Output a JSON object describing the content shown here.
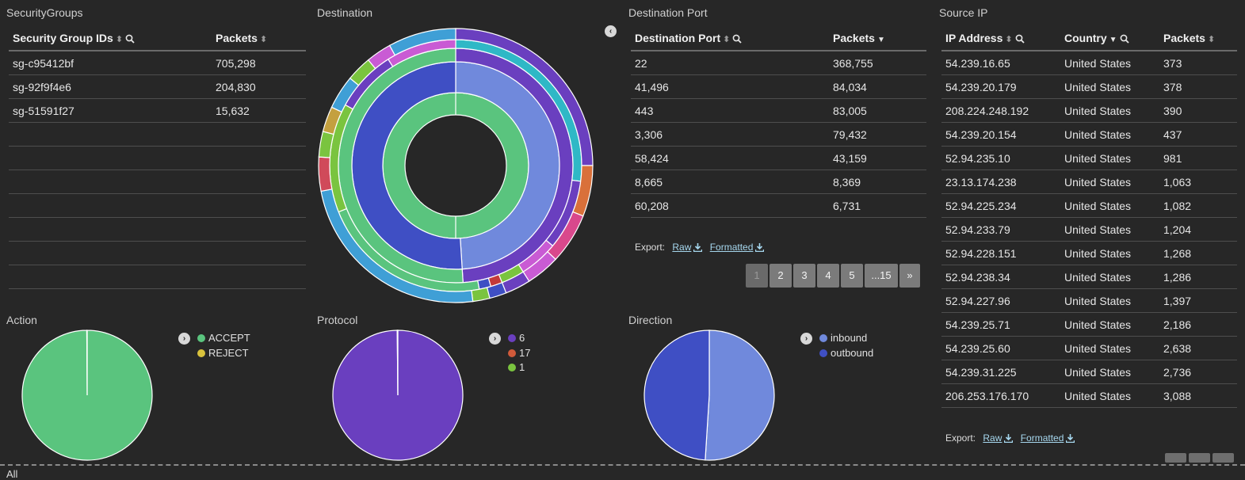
{
  "security_groups": {
    "title": "SecurityGroups",
    "headers": [
      "Security Group IDs",
      "Packets"
    ],
    "rows": [
      [
        "sg-c95412bf",
        "705,298"
      ],
      [
        "sg-92f9f4e6",
        "204,830"
      ],
      [
        "sg-51591f27",
        "15,632"
      ],
      [
        "",
        ""
      ],
      [
        "",
        ""
      ],
      [
        "",
        ""
      ],
      [
        "",
        ""
      ],
      [
        "",
        ""
      ],
      [
        "",
        ""
      ],
      [
        "",
        ""
      ]
    ]
  },
  "destination": {
    "title": "Destination",
    "icon": "chevron-left-icon"
  },
  "destination_port": {
    "title": "Destination Port",
    "headers": [
      "Destination Port",
      "Packets"
    ],
    "rows": [
      [
        "22",
        "368,755"
      ],
      [
        "41,496",
        "84,034"
      ],
      [
        "443",
        "83,005"
      ],
      [
        "3,306",
        "79,432"
      ],
      [
        "58,424",
        "43,159"
      ],
      [
        "8,665",
        "8,369"
      ],
      [
        "60,208",
        "6,731"
      ]
    ],
    "export": {
      "label": "Export:",
      "raw": "Raw",
      "formatted": "Formatted"
    },
    "pager": [
      "1",
      "2",
      "3",
      "4",
      "5",
      "...15",
      "»"
    ]
  },
  "source_ip": {
    "title": "Source IP",
    "headers": [
      "IP Address",
      "Country",
      "Packets"
    ],
    "rows": [
      [
        "54.239.16.65",
        "United States",
        "373"
      ],
      [
        "54.239.20.179",
        "United States",
        "378"
      ],
      [
        "208.224.248.192",
        "United States",
        "390"
      ],
      [
        "54.239.20.154",
        "United States",
        "437"
      ],
      [
        "52.94.235.10",
        "United States",
        "981"
      ],
      [
        "23.13.174.238",
        "United States",
        "1,063"
      ],
      [
        "52.94.225.234",
        "United States",
        "1,082"
      ],
      [
        "52.94.233.79",
        "United States",
        "1,204"
      ],
      [
        "52.94.228.151",
        "United States",
        "1,268"
      ],
      [
        "52.94.238.34",
        "United States",
        "1,286"
      ],
      [
        "52.94.227.96",
        "United States",
        "1,397"
      ],
      [
        "54.239.25.71",
        "United States",
        "2,186"
      ],
      [
        "54.239.25.60",
        "United States",
        "2,638"
      ],
      [
        "54.239.31.225",
        "United States",
        "2,736"
      ],
      [
        "206.253.176.170",
        "United States",
        "3,088"
      ]
    ],
    "export": {
      "label": "Export:",
      "raw": "Raw",
      "formatted": "Formatted"
    }
  },
  "action": {
    "title": "Action",
    "legend": [
      {
        "label": "ACCEPT",
        "color": "#5ac47e"
      },
      {
        "label": "REJECT",
        "color": "#d9c23c"
      }
    ]
  },
  "protocol": {
    "title": "Protocol",
    "legend": [
      {
        "label": "6",
        "color": "#6a3fbf"
      },
      {
        "label": "17",
        "color": "#d15a3a"
      },
      {
        "label": "1",
        "color": "#7ac43f"
      }
    ]
  },
  "direction": {
    "title": "Direction",
    "legend": [
      {
        "label": "inbound",
        "color": "#7089dc"
      },
      {
        "label": "outbound",
        "color": "#3f4fc4"
      }
    ]
  },
  "footer": {
    "label": "All"
  },
  "chart_data": [
    {
      "type": "pie",
      "title": "Action",
      "categories": [
        "ACCEPT",
        "REJECT"
      ],
      "values": [
        99.9,
        0.1
      ],
      "colors": [
        "#5ac47e",
        "#d9c23c"
      ],
      "start_angle": 0
    },
    {
      "type": "pie",
      "title": "Protocol",
      "categories": [
        "6",
        "17",
        "1"
      ],
      "values": [
        99.85,
        0.1,
        0.05
      ],
      "colors": [
        "#6a3fbf",
        "#d15a3a",
        "#7ac43f"
      ],
      "start_angle": 0
    },
    {
      "type": "pie",
      "title": "Direction",
      "categories": [
        "inbound",
        "outbound"
      ],
      "values": [
        51,
        49
      ],
      "colors": [
        "#7089dc",
        "#3f4fc4"
      ],
      "start_angle": 0
    },
    {
      "type": "sunburst",
      "title": "Destination",
      "rings": [
        [
          {
            "v": 100,
            "c": "#5ac47e"
          }
        ],
        [
          {
            "v": 49,
            "c": "#7089dc"
          },
          {
            "v": 51,
            "c": "#3f4fc4"
          }
        ],
        [
          {
            "v": 49,
            "c": "#6a3fbf"
          },
          {
            "v": 51,
            "c": "#5ac47e"
          }
        ],
        [
          {
            "v": 27,
            "c": "#2fb8c6"
          },
          {
            "v": 9,
            "c": "#6a3fbf"
          },
          {
            "v": 5,
            "c": "#c95bd4"
          },
          {
            "v": 3,
            "c": "#7ac43f"
          },
          {
            "v": 1.5,
            "c": "#c43a3a"
          },
          {
            "v": 1.5,
            "c": "#3f4fc4"
          },
          {
            "v": 22,
            "c": "#5ac47e"
          },
          {
            "v": 14,
            "c": "#7ac43f"
          },
          {
            "v": 8,
            "c": "#6a3fbf"
          },
          {
            "v": 9,
            "c": "#c95bd4"
          }
        ],
        [
          {
            "v": 25,
            "c": "#6a3fbf"
          },
          {
            "v": 6,
            "c": "#d9703a"
          },
          {
            "v": 6,
            "c": "#d9488c"
          },
          {
            "v": 4,
            "c": "#c95bd4"
          },
          {
            "v": 3,
            "c": "#6a3fbf"
          },
          {
            "v": 2,
            "c": "#3f4fc4"
          },
          {
            "v": 2,
            "c": "#7ac43f"
          },
          {
            "v": 24,
            "c": "#3f9fd6"
          },
          {
            "v": 4,
            "c": "#d04a5a"
          },
          {
            "v": 3,
            "c": "#7ac43f"
          },
          {
            "v": 3,
            "c": "#c4a03f"
          },
          {
            "v": 4,
            "c": "#3f9fd6"
          },
          {
            "v": 3,
            "c": "#7ac43f"
          },
          {
            "v": 3,
            "c": "#c95bd4"
          },
          {
            "v": 8,
            "c": "#3f9fd6"
          }
        ]
      ]
    }
  ]
}
